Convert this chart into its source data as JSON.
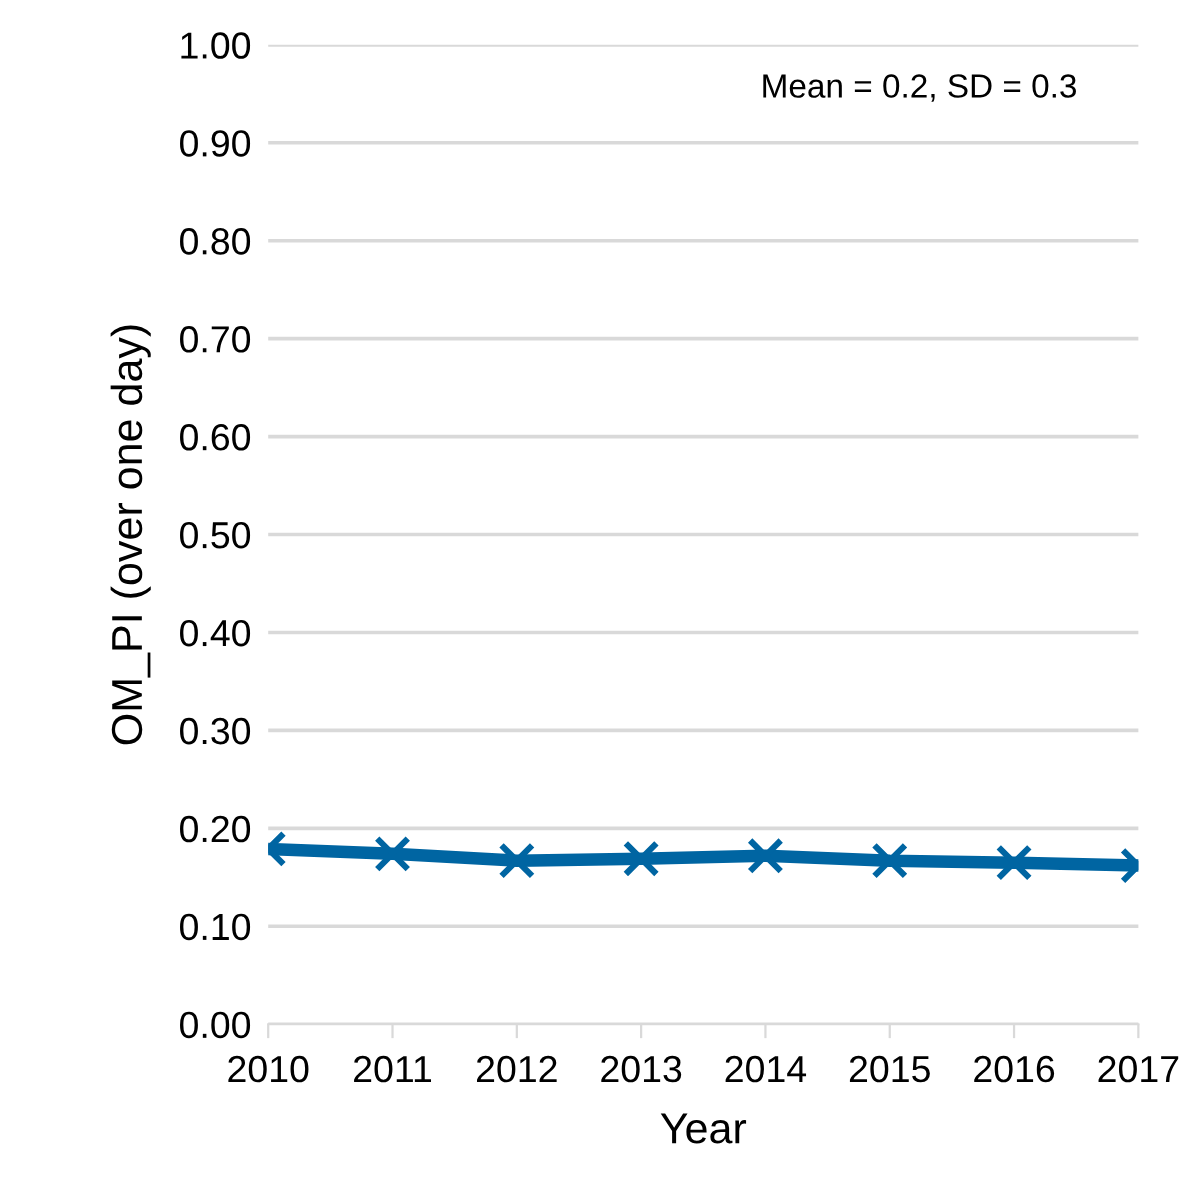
{
  "chart_data": {
    "type": "line",
    "xlabel": "Year",
    "ylabel": "OM_PI (over one day)",
    "categories": [
      "2010",
      "2011",
      "2012",
      "2013",
      "2014",
      "2015",
      "2016",
      "2017"
    ],
    "series": [
      {
        "color": "#0065a2",
        "values": [
          0.179,
          0.174,
          0.167,
          0.169,
          0.172,
          0.167,
          0.165,
          0.162
        ]
      }
    ],
    "ylim": [
      0,
      1
    ],
    "yticks": [
      {
        "value": 0,
        "label": "0.00"
      },
      {
        "value": 0.1,
        "label": "0.10"
      },
      {
        "value": 0.2,
        "label": "0.20"
      },
      {
        "value": 0.3,
        "label": "0.30"
      },
      {
        "value": 0.4,
        "label": "0.40"
      },
      {
        "value": 0.5,
        "label": "0.50"
      },
      {
        "value": 0.6,
        "label": "0.60"
      },
      {
        "value": 0.7,
        "label": "0.70"
      },
      {
        "value": 0.8,
        "label": "0.80"
      },
      {
        "value": 0.9,
        "label": "0.90"
      },
      {
        "value": 1,
        "label": "1.00"
      }
    ],
    "grid": "y",
    "marker": "cross",
    "line_style": "solid",
    "legend": false,
    "annotations": [
      "Mean = 0.2, SD = 0.3"
    ]
  }
}
